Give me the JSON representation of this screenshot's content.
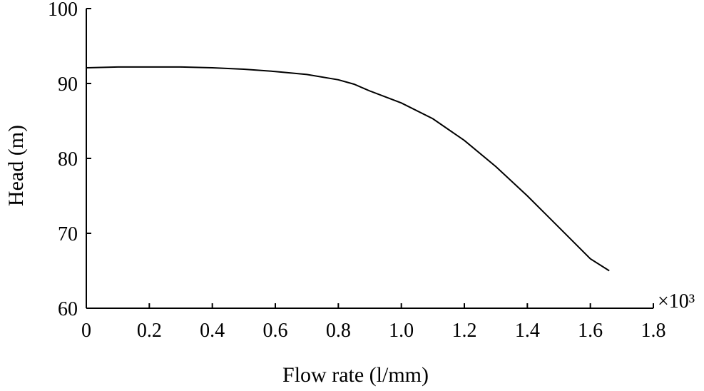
{
  "chart_data": {
    "type": "line",
    "xlabel": "Flow rate (l/mm)",
    "ylabel": "Head (m)",
    "x_multiplier_label": "×10³",
    "xlim": [
      0,
      1.8
    ],
    "ylim": [
      60,
      100
    ],
    "x_ticks": [
      "0",
      "0.2",
      "0.4",
      "0.6",
      "0.8",
      "1.0",
      "1.2",
      "1.4",
      "1.6",
      "1.8"
    ],
    "y_ticks": [
      "60",
      "70",
      "80",
      "90",
      "100"
    ],
    "grid": false,
    "series": [
      {
        "x": [
          0,
          0.1,
          0.2,
          0.3,
          0.4,
          0.5,
          0.6,
          0.7,
          0.8,
          0.85,
          0.9,
          1.0,
          1.1,
          1.2,
          1.3,
          1.4,
          1.5,
          1.6,
          1.66
        ],
        "y": [
          92.1,
          92.2,
          92.2,
          92.2,
          92.1,
          91.9,
          91.6,
          91.2,
          90.5,
          89.9,
          89.0,
          87.4,
          85.3,
          82.4,
          78.9,
          75.0,
          70.8,
          66.6,
          65.0
        ]
      }
    ]
  }
}
